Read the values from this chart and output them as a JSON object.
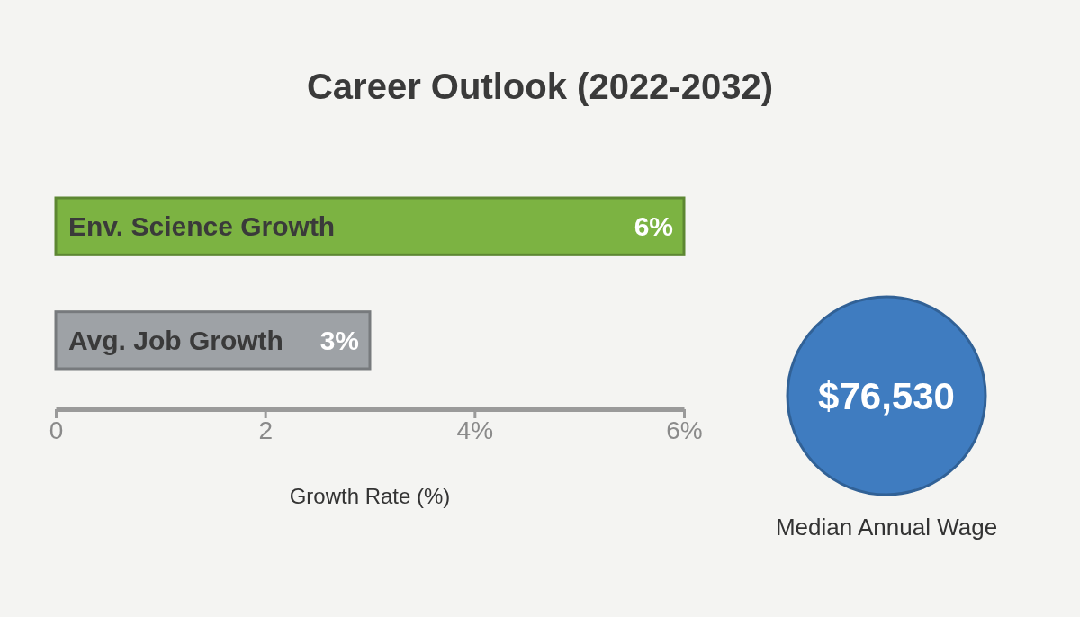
{
  "chart_data": [
    {
      "type": "bar",
      "title": "Career Outlook (2022-2032)",
      "orientation": "horizontal",
      "categories": [
        "Env. Science Growth",
        "Avg. Job Growth"
      ],
      "values": [
        6,
        3
      ],
      "colors": [
        "#7cb342",
        "#9ea2a6"
      ],
      "value_labels": [
        "6%",
        "3%"
      ],
      "xlim": [
        0,
        6
      ],
      "xticks": [
        0,
        2,
        {
          "value": 4,
          "label": "4%"
        },
        {
          "value": 6,
          "label": "6%"
        }
      ],
      "xlabel": "Growth Rate (%)"
    },
    {
      "type": "other",
      "categories": [
        "Median Annual Wage"
      ],
      "values": [
        76530
      ],
      "value_labels": [
        "$76,530"
      ],
      "colors": [
        "#3f7cc0"
      ]
    }
  ]
}
